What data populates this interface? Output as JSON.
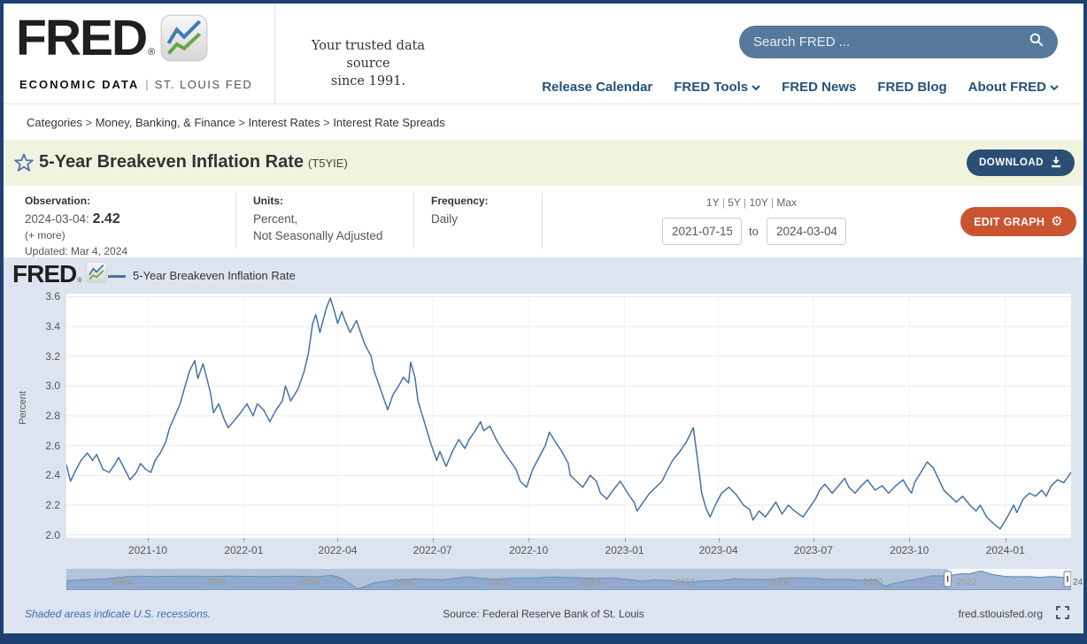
{
  "header": {
    "logo": {
      "brand": "FRED",
      "registered": "®",
      "sub_bold": "ECONOMIC DATA",
      "sub_divider": "|",
      "sub_rest": "ST. LOUIS FED"
    },
    "motto_line1": "Your trusted data source",
    "motto_line2": "since 1991.",
    "search": {
      "placeholder": "Search FRED ..."
    },
    "nav": [
      {
        "label": "Release Calendar",
        "dropdown": false
      },
      {
        "label": "FRED Tools",
        "dropdown": true
      },
      {
        "label": "FRED News",
        "dropdown": false
      },
      {
        "label": "FRED Blog",
        "dropdown": false
      },
      {
        "label": "About FRED",
        "dropdown": true
      }
    ]
  },
  "breadcrumb": {
    "items": [
      "Categories",
      "Money, Banking, & Finance",
      "Interest Rates",
      "Interest Rate Spreads"
    ],
    "separator": ">"
  },
  "series_header": {
    "title": "5-Year Breakeven Inflation Rate",
    "series_id": "(T5YIE)",
    "download_label": "DOWNLOAD"
  },
  "meta": {
    "observation": {
      "label": "Observation:",
      "date": "2024-03-04:",
      "value": "2.42",
      "more": "(+ more)",
      "updated": "Updated: Mar 4, 2024"
    },
    "units": {
      "label": "Units:",
      "line1": "Percent,",
      "line2": "Not Seasonally Adjusted"
    },
    "frequency": {
      "label": "Frequency:",
      "value": "Daily"
    },
    "ranges": {
      "options": [
        "1Y",
        "5Y",
        "10Y",
        "Max"
      ],
      "separator": "|"
    },
    "date_from": "2021-07-15",
    "to_label": "to",
    "date_to": "2024-03-04",
    "edit_graph_label": "EDIT GRAPH"
  },
  "chart_data": {
    "type": "line",
    "title": "5-Year Breakeven Inflation Rate",
    "legend_label": "5-Year Breakeven Inflation Rate",
    "ylabel": "Percent",
    "x_range": [
      "2021-07-15",
      "2024-03-04"
    ],
    "ylim": [
      1.98,
      3.62
    ],
    "y_ticks": [
      2.0,
      2.2,
      2.4,
      2.6,
      2.8,
      3.0,
      3.2,
      3.4,
      3.6
    ],
    "x_ticks": [
      "2021-10-01",
      "2022-01-01",
      "2022-04-01",
      "2022-07-01",
      "2022-10-01",
      "2023-01-01",
      "2023-04-01",
      "2023-07-01",
      "2023-10-01",
      "2024-01-01"
    ],
    "x_tick_labels": [
      "2021-10",
      "2022-01",
      "2022-04",
      "2022-07",
      "2022-10",
      "2023-01",
      "2023-04",
      "2023-07",
      "2023-10",
      "2024-01"
    ],
    "grid": true,
    "legend_position": "top-left",
    "line_color": "#4572a7",
    "series": [
      {
        "name": "5-Year Breakeven Inflation Rate",
        "points": [
          [
            "2021-07-15",
            2.47
          ],
          [
            "2021-07-19",
            2.36
          ],
          [
            "2021-07-23",
            2.42
          ],
          [
            "2021-07-29",
            2.5
          ],
          [
            "2021-08-04",
            2.55
          ],
          [
            "2021-08-09",
            2.5
          ],
          [
            "2021-08-13",
            2.54
          ],
          [
            "2021-08-19",
            2.44
          ],
          [
            "2021-08-25",
            2.42
          ],
          [
            "2021-08-31",
            2.48
          ],
          [
            "2021-09-03",
            2.52
          ],
          [
            "2021-09-09",
            2.44
          ],
          [
            "2021-09-14",
            2.37
          ],
          [
            "2021-09-20",
            2.42
          ],
          [
            "2021-09-24",
            2.48
          ],
          [
            "2021-09-29",
            2.44
          ],
          [
            "2021-10-04",
            2.42
          ],
          [
            "2021-10-08",
            2.5
          ],
          [
            "2021-10-13",
            2.55
          ],
          [
            "2021-10-18",
            2.62
          ],
          [
            "2021-10-22",
            2.72
          ],
          [
            "2021-10-27",
            2.8
          ],
          [
            "2021-11-01",
            2.88
          ],
          [
            "2021-11-05",
            2.98
          ],
          [
            "2021-11-10",
            3.1
          ],
          [
            "2021-11-15",
            3.17
          ],
          [
            "2021-11-18",
            3.05
          ],
          [
            "2021-11-23",
            3.15
          ],
          [
            "2021-11-30",
            2.96
          ],
          [
            "2021-12-03",
            2.82
          ],
          [
            "2021-12-08",
            2.88
          ],
          [
            "2021-12-13",
            2.78
          ],
          [
            "2021-12-17",
            2.72
          ],
          [
            "2021-12-22",
            2.76
          ],
          [
            "2021-12-29",
            2.82
          ],
          [
            "2022-01-04",
            2.88
          ],
          [
            "2022-01-10",
            2.8
          ],
          [
            "2022-01-14",
            2.88
          ],
          [
            "2022-01-20",
            2.84
          ],
          [
            "2022-01-26",
            2.76
          ],
          [
            "2022-02-01",
            2.84
          ],
          [
            "2022-02-07",
            2.9
          ],
          [
            "2022-02-10",
            3.0
          ],
          [
            "2022-02-15",
            2.9
          ],
          [
            "2022-02-22",
            2.98
          ],
          [
            "2022-02-28",
            3.1
          ],
          [
            "2022-03-04",
            3.22
          ],
          [
            "2022-03-08",
            3.42
          ],
          [
            "2022-03-11",
            3.48
          ],
          [
            "2022-03-15",
            3.36
          ],
          [
            "2022-03-21",
            3.52
          ],
          [
            "2022-03-25",
            3.59
          ],
          [
            "2022-03-29",
            3.5
          ],
          [
            "2022-04-01",
            3.42
          ],
          [
            "2022-04-05",
            3.5
          ],
          [
            "2022-04-08",
            3.44
          ],
          [
            "2022-04-13",
            3.36
          ],
          [
            "2022-04-19",
            3.44
          ],
          [
            "2022-04-22",
            3.38
          ],
          [
            "2022-04-27",
            3.28
          ],
          [
            "2022-05-03",
            3.2
          ],
          [
            "2022-05-06",
            3.1
          ],
          [
            "2022-05-11",
            3.0
          ],
          [
            "2022-05-16",
            2.9
          ],
          [
            "2022-05-19",
            2.84
          ],
          [
            "2022-05-24",
            2.94
          ],
          [
            "2022-05-31",
            3.02
          ],
          [
            "2022-06-03",
            3.06
          ],
          [
            "2022-06-08",
            3.02
          ],
          [
            "2022-06-10",
            3.16
          ],
          [
            "2022-06-14",
            3.06
          ],
          [
            "2022-06-17",
            2.9
          ],
          [
            "2022-06-23",
            2.76
          ],
          [
            "2022-06-29",
            2.62
          ],
          [
            "2022-07-05",
            2.5
          ],
          [
            "2022-07-08",
            2.56
          ],
          [
            "2022-07-14",
            2.46
          ],
          [
            "2022-07-20",
            2.56
          ],
          [
            "2022-07-26",
            2.64
          ],
          [
            "2022-08-01",
            2.58
          ],
          [
            "2022-08-05",
            2.64
          ],
          [
            "2022-08-11",
            2.7
          ],
          [
            "2022-08-16",
            2.76
          ],
          [
            "2022-08-19",
            2.7
          ],
          [
            "2022-08-25",
            2.73
          ],
          [
            "2022-08-31",
            2.64
          ],
          [
            "2022-09-07",
            2.56
          ],
          [
            "2022-09-13",
            2.5
          ],
          [
            "2022-09-19",
            2.44
          ],
          [
            "2022-09-23",
            2.36
          ],
          [
            "2022-09-29",
            2.32
          ],
          [
            "2022-10-05",
            2.44
          ],
          [
            "2022-10-11",
            2.52
          ],
          [
            "2022-10-17",
            2.6
          ],
          [
            "2022-10-21",
            2.69
          ],
          [
            "2022-10-27",
            2.62
          ],
          [
            "2022-11-02",
            2.56
          ],
          [
            "2022-11-08",
            2.48
          ],
          [
            "2022-11-10",
            2.4
          ],
          [
            "2022-11-16",
            2.36
          ],
          [
            "2022-11-22",
            2.32
          ],
          [
            "2022-11-29",
            2.4
          ],
          [
            "2022-12-05",
            2.36
          ],
          [
            "2022-12-09",
            2.28
          ],
          [
            "2022-12-15",
            2.24
          ],
          [
            "2022-12-21",
            2.3
          ],
          [
            "2022-12-28",
            2.36
          ],
          [
            "2023-01-04",
            2.28
          ],
          [
            "2023-01-10",
            2.22
          ],
          [
            "2023-01-13",
            2.16
          ],
          [
            "2023-01-19",
            2.22
          ],
          [
            "2023-01-25",
            2.28
          ],
          [
            "2023-01-31",
            2.32
          ],
          [
            "2023-02-06",
            2.36
          ],
          [
            "2023-02-10",
            2.42
          ],
          [
            "2023-02-16",
            2.5
          ],
          [
            "2023-02-23",
            2.56
          ],
          [
            "2023-03-01",
            2.62
          ],
          [
            "2023-03-08",
            2.72
          ],
          [
            "2023-03-13",
            2.45
          ],
          [
            "2023-03-16",
            2.28
          ],
          [
            "2023-03-20",
            2.18
          ],
          [
            "2023-03-24",
            2.12
          ],
          [
            "2023-03-29",
            2.2
          ],
          [
            "2023-04-04",
            2.28
          ],
          [
            "2023-04-11",
            2.32
          ],
          [
            "2023-04-18",
            2.27
          ],
          [
            "2023-04-25",
            2.2
          ],
          [
            "2023-05-01",
            2.17
          ],
          [
            "2023-05-04",
            2.1
          ],
          [
            "2023-05-10",
            2.16
          ],
          [
            "2023-05-16",
            2.12
          ],
          [
            "2023-05-22",
            2.18
          ],
          [
            "2023-05-26",
            2.22
          ],
          [
            "2023-06-01",
            2.14
          ],
          [
            "2023-06-07",
            2.2
          ],
          [
            "2023-06-13",
            2.16
          ],
          [
            "2023-06-21",
            2.12
          ],
          [
            "2023-06-27",
            2.18
          ],
          [
            "2023-07-03",
            2.24
          ],
          [
            "2023-07-07",
            2.3
          ],
          [
            "2023-07-12",
            2.34
          ],
          [
            "2023-07-19",
            2.28
          ],
          [
            "2023-07-25",
            2.33
          ],
          [
            "2023-07-31",
            2.38
          ],
          [
            "2023-08-04",
            2.32
          ],
          [
            "2023-08-10",
            2.28
          ],
          [
            "2023-08-16",
            2.33
          ],
          [
            "2023-08-22",
            2.37
          ],
          [
            "2023-08-29",
            2.3
          ],
          [
            "2023-09-05",
            2.33
          ],
          [
            "2023-09-11",
            2.28
          ],
          [
            "2023-09-18",
            2.33
          ],
          [
            "2023-09-25",
            2.37
          ],
          [
            "2023-09-29",
            2.32
          ],
          [
            "2023-10-03",
            2.28
          ],
          [
            "2023-10-06",
            2.35
          ],
          [
            "2023-10-12",
            2.42
          ],
          [
            "2023-10-18",
            2.49
          ],
          [
            "2023-10-24",
            2.45
          ],
          [
            "2023-10-30",
            2.36
          ],
          [
            "2023-11-03",
            2.3
          ],
          [
            "2023-11-09",
            2.26
          ],
          [
            "2023-11-15",
            2.22
          ],
          [
            "2023-11-21",
            2.26
          ],
          [
            "2023-11-28",
            2.2
          ],
          [
            "2023-12-04",
            2.16
          ],
          [
            "2023-12-08",
            2.2
          ],
          [
            "2023-12-14",
            2.12
          ],
          [
            "2023-12-20",
            2.08
          ],
          [
            "2023-12-27",
            2.04
          ],
          [
            "2024-01-03",
            2.12
          ],
          [
            "2024-01-09",
            2.2
          ],
          [
            "2024-01-12",
            2.15
          ],
          [
            "2024-01-18",
            2.24
          ],
          [
            "2024-01-24",
            2.28
          ],
          [
            "2024-01-30",
            2.26
          ],
          [
            "2024-02-05",
            2.3
          ],
          [
            "2024-02-09",
            2.26
          ],
          [
            "2024-02-14",
            2.33
          ],
          [
            "2024-02-20",
            2.37
          ],
          [
            "2024-02-26",
            2.35
          ],
          [
            "2024-03-01",
            2.39
          ],
          [
            "2024-03-04",
            2.42
          ]
        ]
      }
    ],
    "scrubber": {
      "x_range": [
        2002.75,
        2024.17
      ],
      "ylim": [
        -0.35,
        3.9
      ],
      "year_labels": [
        2004,
        2006,
        2008,
        2010,
        2012,
        2014,
        2016,
        2018,
        2020,
        2022
      ],
      "end_label": "24",
      "selection": [
        2021.54,
        2024.17
      ],
      "points": [
        [
          2002.75,
          1.55
        ],
        [
          2003.0,
          1.65
        ],
        [
          2003.3,
          1.8
        ],
        [
          2003.6,
          1.9
        ],
        [
          2004.0,
          2.3
        ],
        [
          2004.3,
          2.45
        ],
        [
          2004.6,
          2.35
        ],
        [
          2005.0,
          2.4
        ],
        [
          2005.4,
          2.45
        ],
        [
          2005.8,
          2.35
        ],
        [
          2006.2,
          2.45
        ],
        [
          2006.6,
          2.4
        ],
        [
          2007.0,
          2.35
        ],
        [
          2007.4,
          2.45
        ],
        [
          2007.8,
          2.4
        ],
        [
          2008.1,
          2.3
        ],
        [
          2008.4,
          2.6
        ],
        [
          2008.6,
          2.1
        ],
        [
          2008.8,
          0.9
        ],
        [
          2008.95,
          -0.1
        ],
        [
          2009.1,
          0.3
        ],
        [
          2009.3,
          1.1
        ],
        [
          2009.6,
          1.5
        ],
        [
          2009.9,
          1.7
        ],
        [
          2010.2,
          1.9
        ],
        [
          2010.5,
          1.8
        ],
        [
          2010.8,
          1.7
        ],
        [
          2011.0,
          2.0
        ],
        [
          2011.3,
          2.25
        ],
        [
          2011.6,
          2.0
        ],
        [
          2011.9,
          1.85
        ],
        [
          2012.2,
          2.0
        ],
        [
          2012.5,
          2.05
        ],
        [
          2012.8,
          2.1
        ],
        [
          2013.1,
          2.25
        ],
        [
          2013.4,
          2.2
        ],
        [
          2013.7,
          2.1
        ],
        [
          2014.0,
          2.0
        ],
        [
          2014.4,
          2.05
        ],
        [
          2014.8,
          1.7
        ],
        [
          2015.0,
          1.45
        ],
        [
          2015.3,
          1.7
        ],
        [
          2015.7,
          1.5
        ],
        [
          2016.0,
          1.25
        ],
        [
          2016.3,
          1.5
        ],
        [
          2016.7,
          1.55
        ],
        [
          2017.0,
          1.9
        ],
        [
          2017.3,
          1.8
        ],
        [
          2017.7,
          1.75
        ],
        [
          2018.0,
          2.0
        ],
        [
          2018.4,
          2.1
        ],
        [
          2018.8,
          1.95
        ],
        [
          2019.0,
          1.75
        ],
        [
          2019.3,
          1.85
        ],
        [
          2019.7,
          1.6
        ],
        [
          2020.0,
          1.7
        ],
        [
          2020.2,
          0.45
        ],
        [
          2020.4,
          1.0
        ],
        [
          2020.7,
          1.55
        ],
        [
          2021.0,
          2.0
        ],
        [
          2021.2,
          2.5
        ],
        [
          2021.54,
          2.48
        ],
        [
          2021.8,
          2.9
        ],
        [
          2022.0,
          2.9
        ],
        [
          2022.25,
          3.45
        ],
        [
          2022.5,
          2.75
        ],
        [
          2022.75,
          2.4
        ],
        [
          2023.0,
          2.3
        ],
        [
          2023.25,
          2.35
        ],
        [
          2023.5,
          2.2
        ],
        [
          2023.75,
          2.35
        ],
        [
          2024.0,
          2.2
        ],
        [
          2024.17,
          2.42
        ]
      ]
    }
  },
  "footer": {
    "recession_note": "Shaded areas indicate U.S. recessions.",
    "source": "Source: Federal Reserve Bank of St. Louis",
    "site": "fred.stlouisfed.org"
  },
  "colors": {
    "page_border": "#1e4173",
    "nav_link": "#23527c",
    "search_bg": "#56799b",
    "title_bar_bg": "#f0f3de",
    "download_bg": "#2b4e74",
    "edit_graph_bg": "#ca5430",
    "chart_bg": "#dde4ef",
    "line": "#4572a7",
    "recession_note": "#3a6eb5"
  }
}
